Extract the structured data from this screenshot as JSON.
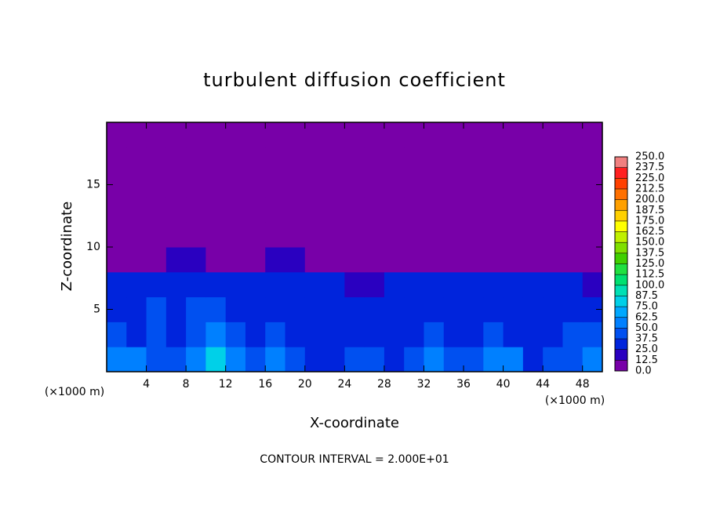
{
  "chart_data": {
    "type": "heatmap",
    "title": "turbulent diffusion coefficient",
    "x_label": "X-coordinate",
    "y_label": "Z-coordinate",
    "x_unit": "(×1000 m)",
    "y_unit": "(×1000 m)",
    "footer": "CONTOUR INTERVAL = 2.000E+01",
    "x": [
      0,
      2,
      4,
      6,
      8,
      10,
      12,
      14,
      16,
      18,
      20,
      22,
      24,
      26,
      28,
      30,
      32,
      34,
      36,
      38,
      40,
      42,
      44,
      46,
      48,
      50
    ],
    "y": [
      0,
      2,
      4,
      6,
      8,
      10,
      12,
      14,
      16,
      18,
      20
    ],
    "z": [
      [
        60,
        50,
        45,
        40,
        50,
        75,
        55,
        45,
        50,
        40,
        35,
        30,
        40,
        45,
        35,
        40,
        50,
        45,
        40,
        55,
        50,
        35,
        40,
        45,
        50
      ],
      [
        40,
        35,
        40,
        35,
        45,
        50,
        40,
        30,
        40,
        30,
        25,
        25,
        30,
        35,
        30,
        35,
        40,
        35,
        30,
        40,
        35,
        30,
        35,
        40,
        45
      ],
      [
        35,
        30,
        40,
        30,
        40,
        40,
        35,
        30,
        35,
        30,
        25,
        25,
        25,
        30,
        25,
        30,
        35,
        30,
        30,
        35,
        35,
        30,
        35,
        30,
        30
      ],
      [
        30,
        25,
        30,
        25,
        30,
        30,
        30,
        30,
        30,
        25,
        25,
        25,
        20,
        20,
        25,
        25,
        25,
        25,
        25,
        30,
        30,
        25,
        30,
        25,
        20
      ],
      [
        0,
        0,
        0,
        15,
        15,
        0,
        0,
        0,
        20,
        15,
        0,
        0,
        0,
        0,
        0,
        0,
        0,
        0,
        0,
        0,
        0,
        0,
        0,
        0,
        0
      ],
      [
        0,
        0,
        0,
        0,
        0,
        0,
        0,
        0,
        0,
        0,
        0,
        0,
        0,
        0,
        0,
        0,
        0,
        0,
        0,
        0,
        0,
        0,
        0,
        0,
        0
      ],
      [
        0,
        0,
        0,
        0,
        0,
        0,
        0,
        0,
        0,
        0,
        0,
        0,
        0,
        0,
        0,
        0,
        0,
        0,
        0,
        0,
        0,
        0,
        0,
        0,
        0
      ],
      [
        0,
        0,
        0,
        0,
        0,
        0,
        0,
        0,
        0,
        0,
        0,
        0,
        0,
        0,
        0,
        0,
        0,
        0,
        0,
        0,
        0,
        0,
        0,
        0,
        0
      ],
      [
        0,
        0,
        0,
        0,
        0,
        0,
        0,
        0,
        0,
        0,
        0,
        0,
        0,
        0,
        0,
        0,
        0,
        0,
        0,
        0,
        0,
        0,
        0,
        0,
        0
      ],
      [
        0,
        0,
        0,
        0,
        0,
        0,
        0,
        0,
        0,
        0,
        0,
        0,
        0,
        0,
        0,
        0,
        0,
        0,
        0,
        0,
        0,
        0,
        0,
        0,
        0
      ]
    ],
    "xlim": [
      0,
      50
    ],
    "ylim": [
      0,
      20
    ],
    "xticks": [
      4,
      8,
      12,
      16,
      20,
      24,
      28,
      32,
      36,
      40,
      44,
      48
    ],
    "yticks": [
      5,
      10,
      15
    ],
    "colorbar_ticks": [
      {
        "value": 0,
        "label": "0.0"
      },
      {
        "value": 12.5,
        "label": "12.5"
      },
      {
        "value": 25,
        "label": "25.0"
      },
      {
        "value": 37.5,
        "label": "37.5"
      },
      {
        "value": 50,
        "label": "50.0"
      },
      {
        "value": 62.5,
        "label": "62.5"
      },
      {
        "value": 75,
        "label": "75.0"
      },
      {
        "value": 87.5,
        "label": "87.5"
      },
      {
        "value": 100,
        "label": "100.0"
      },
      {
        "value": 112.5,
        "label": "112.5"
      },
      {
        "value": 125,
        "label": "125.0"
      },
      {
        "value": 137.5,
        "label": "137.5"
      },
      {
        "value": 150,
        "label": "150.0"
      },
      {
        "value": 162.5,
        "label": "162.5"
      },
      {
        "value": 175,
        "label": "175.0"
      },
      {
        "value": 187.5,
        "label": "187.5"
      },
      {
        "value": 200,
        "label": "200.0"
      },
      {
        "value": 212.5,
        "label": "212.5"
      },
      {
        "value": 225,
        "label": "225.0"
      },
      {
        "value": 237.5,
        "label": "237.5"
      },
      {
        "value": 250,
        "label": "250.0"
      }
    ],
    "colorbar_colors": [
      "#7800a8",
      "#2a00c0",
      "#0024dc",
      "#0050f0",
      "#0080ff",
      "#00a8ff",
      "#00d0e8",
      "#00e0b4",
      "#00e070",
      "#20e040",
      "#40d000",
      "#80e000",
      "#c0f000",
      "#ffff00",
      "#ffd000",
      "#ffa000",
      "#ff7000",
      "#ff4000",
      "#ff2020",
      "#f08080"
    ]
  }
}
